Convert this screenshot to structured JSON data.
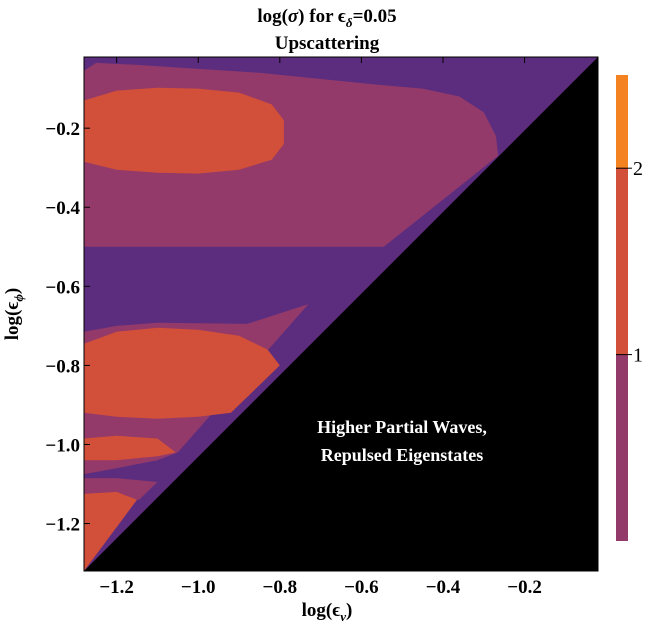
{
  "chart_data": {
    "type": "contour",
    "title_line1_main": "log(",
    "title_line1_sym": "σ",
    "title_line1_rest": ") for ",
    "title_line1_eps": "ϵ",
    "title_line1_sub": "δ",
    "title_line1_val": "=0.05",
    "title_line2": "Upscattering",
    "xlabel": {
      "prefix": "log(",
      "symbol": "ϵ",
      "sub": "ν",
      "suffix": ")"
    },
    "ylabel": {
      "prefix": "log(",
      "symbol": "ϵ",
      "sub": "ϕ",
      "suffix": ")"
    },
    "xlim": [
      -1.28,
      -0.02
    ],
    "ylim": [
      -1.32,
      -0.02
    ],
    "x_ticks": [
      {
        "v": -1.2,
        "label": "−1.2"
      },
      {
        "v": -1.0,
        "label": "−1.0"
      },
      {
        "v": -0.8,
        "label": "−0.8"
      },
      {
        "v": -0.6,
        "label": "−0.6"
      },
      {
        "v": -0.4,
        "label": "−0.4"
      },
      {
        "v": -0.2,
        "label": "−0.2"
      }
    ],
    "y_ticks": [
      {
        "v": -0.2,
        "label": "−0.2"
      },
      {
        "v": -0.4,
        "label": "−0.4"
      },
      {
        "v": -0.6,
        "label": "−0.6"
      },
      {
        "v": -0.8,
        "label": "−0.8"
      },
      {
        "v": -1.0,
        "label": "−1.0"
      },
      {
        "v": -1.2,
        "label": "−1.2"
      }
    ],
    "excluded_region": {
      "corners": [
        [
          -1.28,
          -1.32
        ],
        [
          -0.02,
          -1.32
        ],
        [
          -0.02,
          -0.02
        ]
      ],
      "color": "#000000",
      "annotation_lines": [
        "Higher Partial Waves,",
        "Repulsed Eigenstates"
      ]
    },
    "colorbar": {
      "range": [
        0.0,
        2.5
      ],
      "levels": [
        {
          "from": 0.0,
          "to": 1.0,
          "color": "#933a6a"
        },
        {
          "from": 1.0,
          "to": 2.0,
          "color": "#d24f39"
        },
        {
          "from": 2.0,
          "to": 2.5,
          "color": "#f58220"
        }
      ],
      "tick_values": [
        1,
        2
      ],
      "tick_labels": [
        "1",
        "2"
      ]
    },
    "contour_fills": [
      {
        "level": "lowest",
        "color": "#5c2d7e",
        "poly": [
          [
            -1.28,
            -0.02
          ],
          [
            -0.02,
            -0.02
          ],
          [
            -0.02,
            -0.02
          ],
          [
            -0.02,
            -0.08
          ],
          [
            -0.26,
            -0.27
          ],
          [
            -0.545,
            -0.5
          ],
          [
            -0.595,
            -0.535
          ],
          [
            -0.73,
            -0.645
          ],
          [
            -1.28,
            -0.645
          ]
        ]
      },
      {
        "level": "0-1",
        "color": "#933a6a",
        "poly": [
          [
            -1.25,
            -0.035
          ],
          [
            -1.15,
            -0.04
          ],
          [
            -1.0,
            -0.05
          ],
          [
            -0.85,
            -0.06
          ],
          [
            -0.56,
            -0.09
          ],
          [
            -0.45,
            -0.1
          ],
          [
            -0.36,
            -0.12
          ],
          [
            -0.3,
            -0.16
          ],
          [
            -0.27,
            -0.22
          ],
          [
            -0.265,
            -0.27
          ],
          [
            -0.545,
            -0.5
          ],
          [
            -1.28,
            -0.5
          ],
          [
            -1.28,
            -0.055
          ]
        ]
      },
      {
        "level": "0-1",
        "color": "#933a6a",
        "poly": [
          [
            -1.28,
            -0.715
          ],
          [
            -1.2,
            -0.7
          ],
          [
            -1.1,
            -0.692
          ],
          [
            -0.88,
            -0.695
          ],
          [
            -0.73,
            -0.645
          ],
          [
            -1.05,
            -1.02
          ],
          [
            -1.1,
            -1.04
          ],
          [
            -1.2,
            -1.06
          ],
          [
            -1.28,
            -1.075
          ]
        ]
      },
      {
        "level": "0-1",
        "color": "#933a6a",
        "poly": [
          [
            -1.28,
            -1.085
          ],
          [
            -1.2,
            -1.085
          ],
          [
            -1.1,
            -1.095
          ],
          [
            -1.145,
            -1.14
          ],
          [
            -1.28,
            -1.13
          ]
        ]
      },
      {
        "level": "1-2",
        "color": "#d24f39",
        "poly": [
          [
            -1.28,
            -0.13
          ],
          [
            -1.2,
            -0.105
          ],
          [
            -1.1,
            -0.098
          ],
          [
            -1.0,
            -0.1
          ],
          [
            -0.9,
            -0.11
          ],
          [
            -0.82,
            -0.14
          ],
          [
            -0.79,
            -0.18
          ],
          [
            -0.79,
            -0.24
          ],
          [
            -0.82,
            -0.28
          ],
          [
            -0.9,
            -0.305
          ],
          [
            -1.0,
            -0.315
          ],
          [
            -1.1,
            -0.313
          ],
          [
            -1.2,
            -0.305
          ],
          [
            -1.28,
            -0.285
          ]
        ]
      },
      {
        "level": "1-2",
        "color": "#d24f39",
        "poly": [
          [
            -1.28,
            -0.745
          ],
          [
            -1.2,
            -0.715
          ],
          [
            -1.1,
            -0.705
          ],
          [
            -1.0,
            -0.71
          ],
          [
            -0.9,
            -0.725
          ],
          [
            -0.83,
            -0.76
          ],
          [
            -0.8,
            -0.8
          ],
          [
            -0.92,
            -0.92
          ],
          [
            -1.0,
            -0.93
          ],
          [
            -1.1,
            -0.935
          ],
          [
            -1.2,
            -0.93
          ],
          [
            -1.28,
            -0.92
          ]
        ]
      },
      {
        "level": "1-2",
        "color": "#d24f39",
        "poly": [
          [
            -1.28,
            -0.985
          ],
          [
            -1.2,
            -0.978
          ],
          [
            -1.1,
            -0.985
          ],
          [
            -1.055,
            -1.02
          ],
          [
            -1.1,
            -1.03
          ],
          [
            -1.2,
            -1.04
          ],
          [
            -1.28,
            -1.04
          ]
        ]
      },
      {
        "level": "1-2",
        "color": "#d24f39",
        "poly": [
          [
            -1.28,
            -1.125
          ],
          [
            -1.2,
            -1.12
          ],
          [
            -1.15,
            -1.14
          ],
          [
            -1.28,
            -1.32
          ]
        ]
      }
    ]
  }
}
